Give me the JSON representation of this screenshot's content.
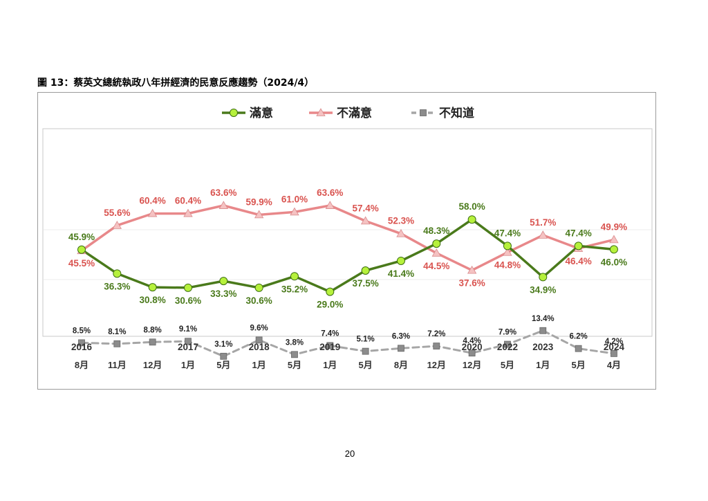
{
  "figure_title": "圖 13：蔡英文總統執政八年拼經濟的民意反應趨勢（2024/4）",
  "page_number": "20",
  "chart_data": {
    "type": "line",
    "title": "",
    "xlabel": "",
    "ylabel": "",
    "ylim": [
      0,
      70
    ],
    "grid": false,
    "legend": "top-center",
    "years": [
      "2016",
      "",
      "",
      "2017",
      "",
      "2018",
      "",
      "2019",
      "",
      "",
      "",
      "2020",
      "2022",
      "2023",
      "",
      "2024"
    ],
    "months": [
      "8月",
      "11月",
      "12月",
      "1月",
      "5月",
      "1月",
      "5月",
      "1月",
      "5月",
      "8月",
      "12月",
      "12月",
      "5月",
      "1月",
      "5月",
      "4月"
    ],
    "categories": [
      "2016 8月",
      "2016 11月",
      "2016 12月",
      "2017 1月",
      "2017 5月",
      "2018 1月",
      "2018 5月",
      "2019 1月",
      "2019 5月",
      "2019 8月",
      "2019 12月",
      "2020 12月",
      "2022 5月",
      "2023 1月",
      "2023 5月",
      "2024 4月"
    ],
    "series": [
      {
        "name": "滿意",
        "color": "#4a7a1b",
        "marker": "circle",
        "marker_color": "#b6f13c",
        "values": [
          45.9,
          36.3,
          30.8,
          30.6,
          33.3,
          30.6,
          35.2,
          29.0,
          37.5,
          41.4,
          48.3,
          58.0,
          47.4,
          34.9,
          47.4,
          46.0
        ],
        "labels": [
          "45.9%",
          "36.3%",
          "30.8%",
          "30.6%",
          "33.3%",
          "30.6%",
          "35.2%",
          "29.0%",
          "37.5%",
          "41.4%",
          "48.3%",
          "58.0%",
          "47.4%",
          "34.9%",
          "47.4%",
          "46.0%"
        ]
      },
      {
        "name": "不滿意",
        "color": "#e8888a",
        "marker": "triangle",
        "marker_color": "#f5c2c2",
        "label_color": "#d9534f",
        "values": [
          45.5,
          55.6,
          60.4,
          60.4,
          63.6,
          59.9,
          61.0,
          63.6,
          57.4,
          52.3,
          44.5,
          37.6,
          44.8,
          51.7,
          46.4,
          49.9
        ],
        "labels": [
          "45.5%",
          "55.6%",
          "60.4%",
          "60.4%",
          "63.6%",
          "59.9%",
          "61.0%",
          "63.6%",
          "57.4%",
          "52.3%",
          "44.5%",
          "37.6%",
          "44.8%",
          "51.7%",
          "46.4%",
          "49.9%"
        ]
      },
      {
        "name": "不知道",
        "color": "#a6a6a6",
        "marker": "square",
        "marker_color": "#8c8c8c",
        "dashed": true,
        "values": [
          8.5,
          8.1,
          8.8,
          9.1,
          3.1,
          9.6,
          3.8,
          7.4,
          5.1,
          6.3,
          7.2,
          4.4,
          7.9,
          13.4,
          6.2,
          4.2
        ],
        "labels": [
          "8.5%",
          "8.1%",
          "8.8%",
          "9.1%",
          "3.1%",
          "9.6%",
          "3.8%",
          "7.4%",
          "5.1%",
          "6.3%",
          "7.2%",
          "4.4%",
          "7.9%",
          "13.4%",
          "6.2%",
          "4.2%"
        ]
      }
    ]
  }
}
